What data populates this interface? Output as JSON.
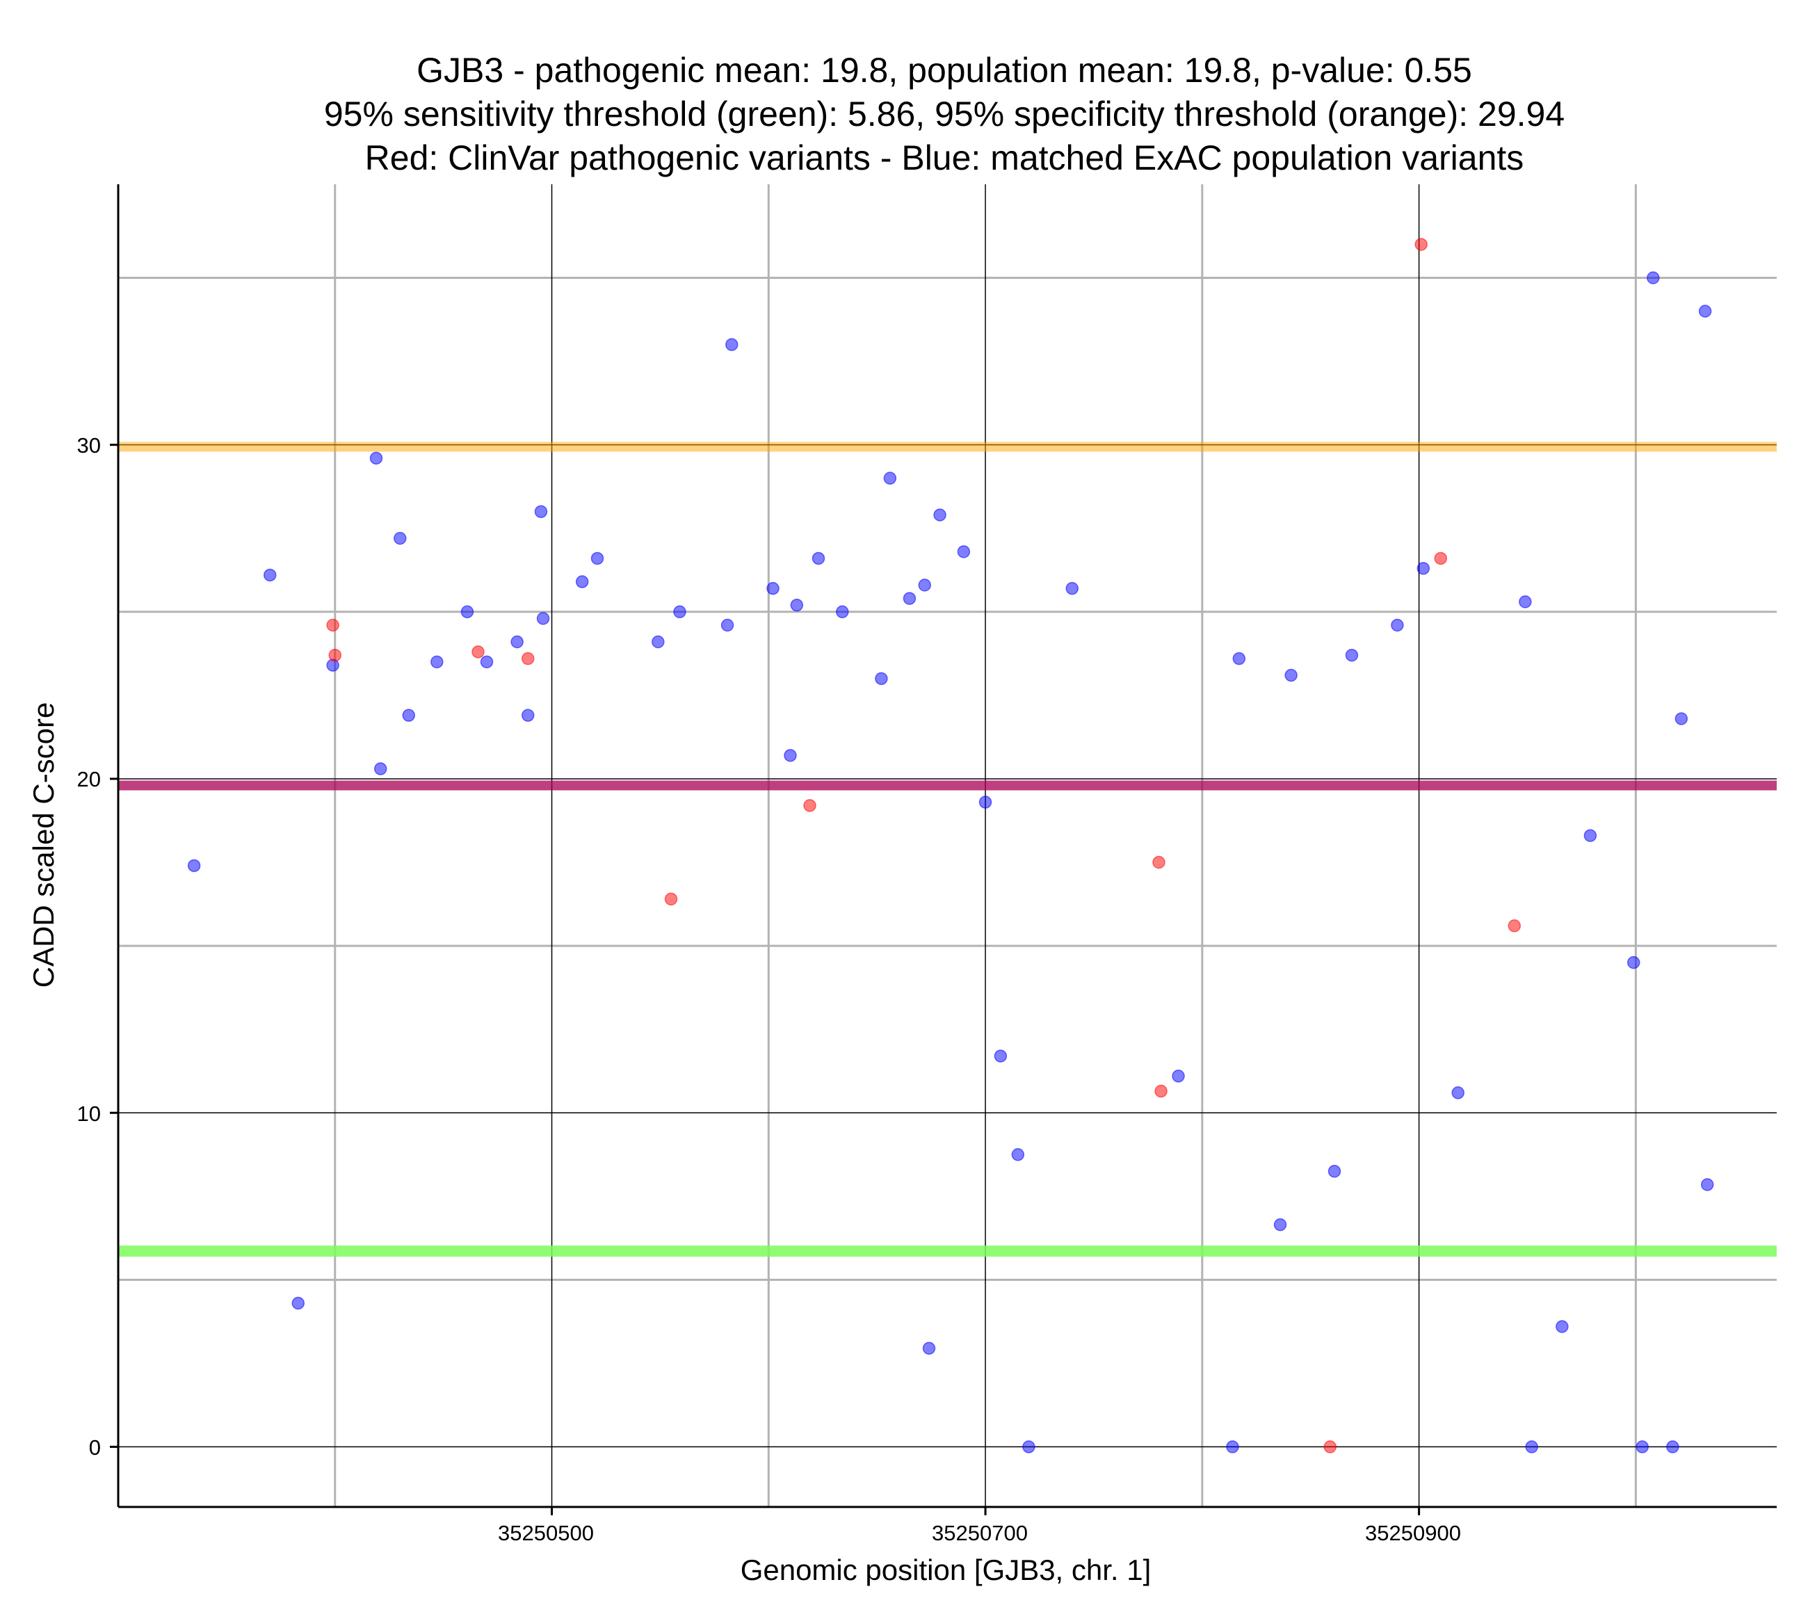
{
  "colors": {
    "population": "#0000ff",
    "pathogenic": "#ff0000",
    "sensitivity": "#7cfc5c",
    "specificity": "#ffa500",
    "mean_line": "#b03060"
  },
  "chart_data": {
    "type": "scatter",
    "title": [
      "GJB3 - pathogenic mean: 19.8, population mean: 19.8, p-value: 0.55",
      "95% sensitivity threshold (green): 5.86, 95% specificity threshold (orange): 29.94",
      "Red: ClinVar pathogenic variants - Blue: matched ExAC population variants"
    ],
    "xlabel": "Genomic position [GJB3, chr. 1]",
    "ylabel": "CADD scaled C-score",
    "xlim": [
      35250300,
      35251065
    ],
    "ylim": [
      -1.8,
      37.8
    ],
    "x_major_ticks": [
      35250500,
      35250700,
      35250900
    ],
    "x_minor_grid": [
      35250400,
      35250600,
      35250800,
      35251000
    ],
    "y_major_ticks": [
      0,
      10,
      20,
      30
    ],
    "y_minor_grid": [
      5,
      15,
      25,
      35
    ],
    "x_tick_labels": [
      "35250500",
      "35250700",
      "35250900"
    ],
    "y_tick_labels": [
      "0",
      "10",
      "20",
      "30"
    ],
    "hlines": [
      {
        "name": "specificity-threshold",
        "value": 29.94,
        "color": "#ffa500"
      },
      {
        "name": "population-mean",
        "value": 19.8,
        "color": "#0000ff"
      },
      {
        "name": "pathogenic-mean",
        "value": 19.8,
        "color": "#ff0000"
      },
      {
        "name": "sensitivity-threshold",
        "value": 5.86,
        "color": "#7cfc5c"
      }
    ],
    "series": [
      {
        "name": "ExAC population variants",
        "color": "#0000ff",
        "points": [
          [
            35250335,
            17.4
          ],
          [
            35250370,
            26.1
          ],
          [
            35250383,
            4.3
          ],
          [
            35250399,
            23.4
          ],
          [
            35250419,
            29.6
          ],
          [
            35250421,
            20.3
          ],
          [
            35250430,
            27.2
          ],
          [
            35250434,
            21.9
          ],
          [
            35250447,
            23.5
          ],
          [
            35250461,
            25.0
          ],
          [
            35250470,
            23.5
          ],
          [
            35250484,
            24.1
          ],
          [
            35250489,
            21.9
          ],
          [
            35250495,
            28.0
          ],
          [
            35250496,
            24.8
          ],
          [
            35250514,
            25.9
          ],
          [
            35250521,
            26.6
          ],
          [
            35250549,
            24.1
          ],
          [
            35250559,
            25.0
          ],
          [
            35250581,
            24.6
          ],
          [
            35250583,
            33.0
          ],
          [
            35250602,
            25.7
          ],
          [
            35250610,
            20.7
          ],
          [
            35250613,
            25.2
          ],
          [
            35250623,
            26.6
          ],
          [
            35250634,
            25.0
          ],
          [
            35250652,
            23.0
          ],
          [
            35250656,
            29.0
          ],
          [
            35250665,
            25.4
          ],
          [
            35250672,
            25.8
          ],
          [
            35250674,
            2.95
          ],
          [
            35250679,
            27.9
          ],
          [
            35250690,
            26.8
          ],
          [
            35250700,
            19.3
          ],
          [
            35250707,
            11.7
          ],
          [
            35250715,
            8.75
          ],
          [
            35250720,
            0.0
          ],
          [
            35250740,
            25.7
          ],
          [
            35250789,
            11.1
          ],
          [
            35250814,
            0.0
          ],
          [
            35250817,
            23.6
          ],
          [
            35250836,
            6.65
          ],
          [
            35250841,
            23.1
          ],
          [
            35250861,
            8.25
          ],
          [
            35250869,
            23.7
          ],
          [
            35250890,
            24.6
          ],
          [
            35250902,
            26.3
          ],
          [
            35250918,
            10.6
          ],
          [
            35250949,
            25.3
          ],
          [
            35250952,
            0.0
          ],
          [
            35250966,
            3.6
          ],
          [
            35250979,
            18.3
          ],
          [
            35250999,
            14.5
          ],
          [
            35251003,
            0.0
          ],
          [
            35251008,
            35.0
          ],
          [
            35251017,
            0.0
          ],
          [
            35251021,
            21.8
          ],
          [
            35251032,
            34.0
          ],
          [
            35251033,
            7.85
          ]
        ]
      },
      {
        "name": "ClinVar pathogenic variants",
        "color": "#ff0000",
        "points": [
          [
            35250399,
            24.6
          ],
          [
            35250400,
            23.7
          ],
          [
            35250466,
            23.8
          ],
          [
            35250489,
            23.6
          ],
          [
            35250555,
            16.4
          ],
          [
            35250619,
            19.2
          ],
          [
            35250780,
            17.5
          ],
          [
            35250781,
            10.65
          ],
          [
            35250859,
            0.0
          ],
          [
            35250901,
            36.0
          ],
          [
            35250910,
            26.6
          ],
          [
            35250944,
            15.6
          ]
        ]
      }
    ]
  }
}
